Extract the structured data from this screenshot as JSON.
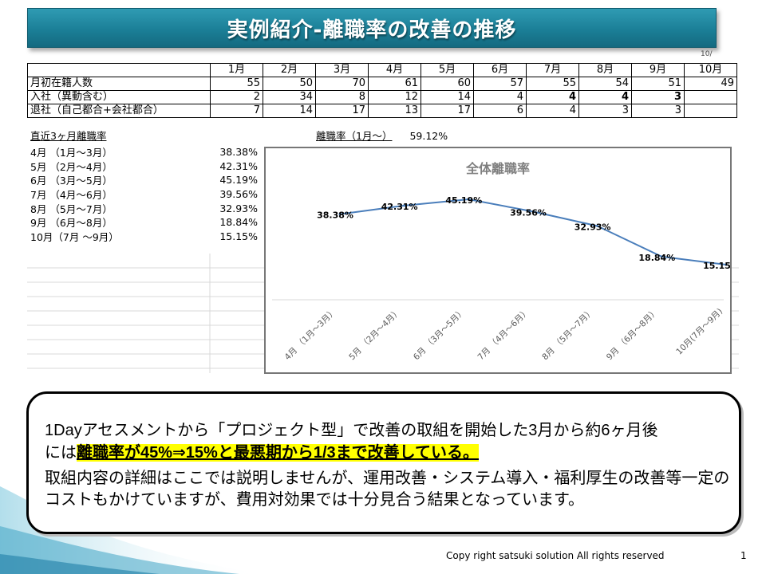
{
  "title": "実例紹介-離職率の改善の推移",
  "corner_note": "10/",
  "table": {
    "months": [
      "1月",
      "2月",
      "3月",
      "4月",
      "5月",
      "6月",
      "7月",
      "8月",
      "9月",
      "10月"
    ],
    "rows": [
      {
        "label": "月初在籍人数",
        "values": [
          "55",
          "50",
          "70",
          "61",
          "60",
          "57",
          "55",
          "54",
          "51",
          "49"
        ]
      },
      {
        "label": "入社（異動含む）",
        "values": [
          "2",
          "34",
          "8",
          "12",
          "14",
          "4",
          "4",
          "4",
          "3",
          ""
        ]
      },
      {
        "label": "退社（自己都合+会社都合）",
        "values": [
          "7",
          "14",
          "17",
          "13",
          "17",
          "6",
          "4",
          "3",
          "3",
          ""
        ]
      }
    ]
  },
  "recent_rates": {
    "heading": "直近3ヶ月離職率",
    "items": [
      {
        "label": "4月 （1月～3月）",
        "value": "38.38%"
      },
      {
        "label": "5月 （2月～4月）",
        "value": "42.31%"
      },
      {
        "label": "6月 （3月～5月）",
        "value": "45.19%"
      },
      {
        "label": "7月 （4月～6月）",
        "value": "39.56%"
      },
      {
        "label": "8月 （5月～7月）",
        "value": "32.93%"
      },
      {
        "label": "9月 （6月～8月）",
        "value": "18.84%"
      },
      {
        "label": "10月（7月 ～9月）",
        "value": "15.15%"
      }
    ]
  },
  "ytd": {
    "label": "離職率（1月～）",
    "value": "59.12%"
  },
  "chart_data": {
    "type": "line",
    "title": "全体離職率",
    "categories": [
      "4月 （1月～3月）",
      "5月 （2月～4月）",
      "6月 （3月～5月）",
      "7月 （4月～6月）",
      "8月 （5月～7月）",
      "9月 （6月～8月）",
      "10月(7月～9月)"
    ],
    "values": [
      38.38,
      42.31,
      45.19,
      39.56,
      32.93,
      18.84,
      15.15
    ],
    "data_labels": [
      "38.38%",
      "42.31%",
      "45.19%",
      "39.56%",
      "32.93%",
      "18.84%",
      "15.15%"
    ],
    "ylim": [
      0,
      50
    ],
    "line_color": "#4a7ebb",
    "grid": false,
    "legend": "none"
  },
  "callout": {
    "line1": "1Dayアセスメントから「プロジェクト型」で改善の取組を開始した3月から約6ヶ月後",
    "line2_prefix": "には",
    "line2_highlight": "離職率が45%⇒15%と最悪期から1/3まで改善している。",
    "para2": "取組内容の詳細はここでは説明しませんが、運用改善・システム導入・福利厚生の改善等一定のコストもかけていますが、費用対効果では十分見合う結果となっています。"
  },
  "footer": "Copy right satsuki solution All rights reserved",
  "page_number": "1"
}
